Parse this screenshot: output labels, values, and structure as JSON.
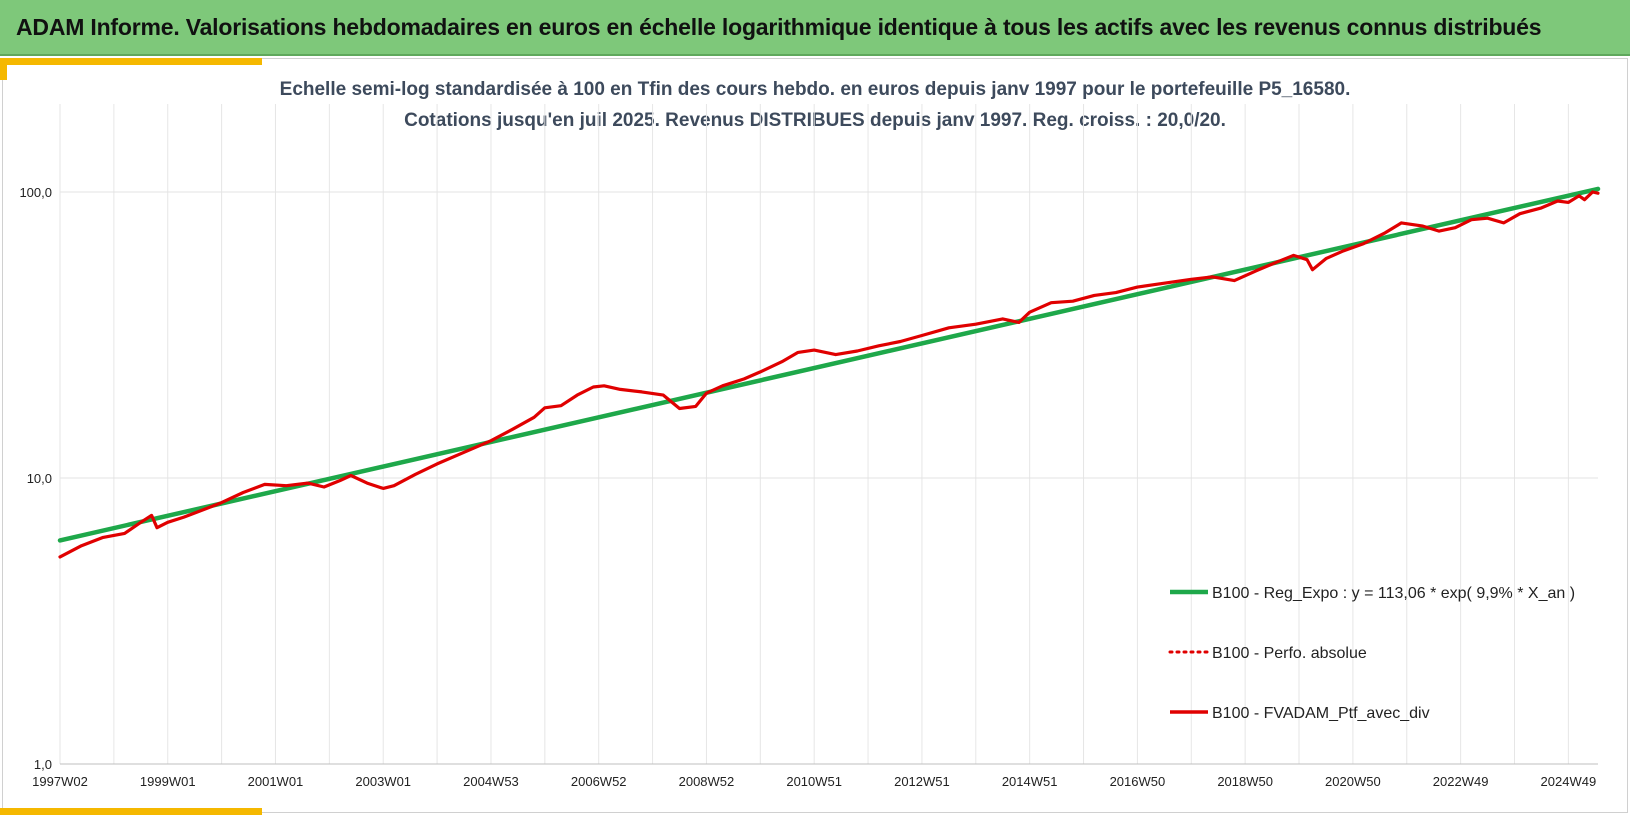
{
  "header": {
    "title": "ADAM Informe. Valorisations hebdomadaires en euros en échelle logarithmique identique à tous les actifs avec les revenus connus distribués"
  },
  "colors": {
    "banner": "#7ec87a",
    "accent": "#f5b800",
    "regression": "#1ea84a",
    "portfolio": "#e00000",
    "perf_absolue": "#e00000"
  },
  "chart_data": {
    "type": "line",
    "title": "Echelle semi-log standardisée à 100 en Tfin des cours hebdo.  en euros depuis janv 1997 pour le portefeuille P5_16580.",
    "subtitle": "Cotations jusqu'en juil 2025. Revenus DISTRIBUES depuis janv 1997. Reg. croiss. : 20,0/20.",
    "yscale": "log",
    "ylim": [
      1,
      200
    ],
    "y_ticks": [
      "1,0",
      "10,0",
      "100,0"
    ],
    "x_ticks": [
      "1997W02",
      "1999W01",
      "2001W01",
      "2003W01",
      "2004W53",
      "2006W52",
      "2008W52",
      "2010W51",
      "2012W51",
      "2014W51",
      "2016W50",
      "2018W50",
      "2020W50",
      "2022W49",
      "2024W49"
    ],
    "x_tick_years": [
      1997.0,
      1999.0,
      2001.0,
      2003.0,
      2005.0,
      2007.0,
      2009.0,
      2011.0,
      2013.0,
      2015.0,
      2017.0,
      2019.0,
      2021.0,
      2023.0,
      2025.0
    ],
    "xlim": [
      1997.0,
      2025.55
    ],
    "grid": true,
    "legend_position": "bottom-right",
    "series": [
      {
        "name": "B100 - Reg_Expo : y = 113,06 * exp( 9,9% *  X_an )",
        "style": "solid-thick",
        "x": [
          1997.0,
          2025.55
        ],
        "y": [
          6.05,
          102.5
        ]
      },
      {
        "name": "B100 - Perfo. absolue",
        "style": "dotted",
        "x": [],
        "y": []
      },
      {
        "name": "B100 - FVADAM_Ptf_avec_div",
        "style": "solid",
        "x": [
          1997.0,
          1997.4,
          1997.8,
          1998.2,
          1998.5,
          1998.7,
          1998.8,
          1999.0,
          1999.3,
          1999.7,
          2000.0,
          2000.4,
          2000.8,
          2001.2,
          2001.6,
          2001.9,
          2002.2,
          2002.4,
          2002.7,
          2003.0,
          2003.2,
          2003.6,
          2004.0,
          2004.5,
          2005.0,
          2005.4,
          2005.8,
          2006.0,
          2006.3,
          2006.6,
          2006.9,
          2007.1,
          2007.4,
          2007.8,
          2008.2,
          2008.5,
          2008.8,
          2009.0,
          2009.3,
          2009.7,
          2010.0,
          2010.4,
          2010.7,
          2011.0,
          2011.4,
          2011.8,
          2012.2,
          2012.6,
          2013.0,
          2013.5,
          2014.0,
          2014.5,
          2014.8,
          2015.0,
          2015.4,
          2015.8,
          2016.2,
          2016.6,
          2017.0,
          2017.5,
          2018.0,
          2018.4,
          2018.8,
          2019.2,
          2019.6,
          2019.9,
          2020.15,
          2020.25,
          2020.5,
          2020.8,
          2021.2,
          2021.6,
          2021.9,
          2022.3,
          2022.6,
          2022.9,
          2023.2,
          2023.5,
          2023.8,
          2024.1,
          2024.5,
          2024.8,
          2025.0,
          2025.2,
          2025.3,
          2025.45,
          2025.55
        ],
        "y": [
          5.3,
          5.8,
          6.2,
          6.4,
          7.0,
          7.4,
          6.7,
          7.0,
          7.3,
          7.8,
          8.2,
          8.9,
          9.5,
          9.4,
          9.6,
          9.3,
          9.8,
          10.2,
          9.6,
          9.2,
          9.4,
          10.3,
          11.2,
          12.3,
          13.5,
          14.8,
          16.3,
          17.6,
          17.9,
          19.5,
          20.8,
          21.0,
          20.4,
          20.0,
          19.5,
          17.5,
          17.8,
          19.8,
          21.0,
          22.2,
          23.5,
          25.5,
          27.5,
          28.0,
          27.0,
          27.8,
          29.0,
          30.0,
          31.5,
          33.5,
          34.5,
          36.0,
          35.0,
          38.0,
          41.0,
          41.5,
          43.5,
          44.5,
          46.5,
          48.0,
          49.5,
          50.5,
          49.0,
          53.0,
          57.0,
          60.0,
          58.0,
          53.5,
          58.5,
          62.0,
          66.0,
          72.0,
          78.0,
          76.0,
          73.0,
          75.0,
          80.0,
          81.0,
          78.0,
          84.0,
          88.0,
          93.0,
          92.0,
          97.0,
          94.0,
          100.0,
          99.0
        ]
      }
    ]
  }
}
